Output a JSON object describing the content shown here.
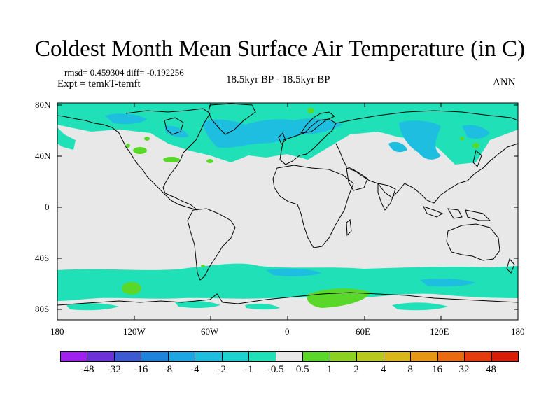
{
  "title": "Coldest Month Mean Surface Air Temperature (in C)",
  "stats": "rmsd= 0.459304 diff= -0.192256",
  "experiment": "Expt = temkT-temft",
  "period": "18.5kyr BP - 18.5kyr BP",
  "season": "ANN",
  "lat_labels": [
    "80N",
    "40N",
    "0",
    "40S",
    "80S"
  ],
  "lon_labels": [
    "180",
    "120W",
    "60W",
    "0",
    "60E",
    "120E",
    "180"
  ],
  "colorbar": {
    "labels": [
      "-48",
      "-32",
      "-16",
      "-8",
      "-4",
      "-2",
      "-1",
      "-0.5",
      "0.5",
      "1",
      "2",
      "4",
      "8",
      "16",
      "32",
      "48"
    ],
    "colors": [
      "#a020f0",
      "#6a32d8",
      "#3c5ad2",
      "#1f82dc",
      "#1ea6e4",
      "#1ebee0",
      "#1ed2d0",
      "#20e0b8",
      "#e8e8e8",
      "#5ad82a",
      "#8cd022",
      "#b8c81c",
      "#d8b818",
      "#e69614",
      "#ea6a10",
      "#e43c0c",
      "#d81e08"
    ]
  },
  "colors": {
    "background_field": "#e8e8e8",
    "cooling_light": "#20e0b8",
    "cooling_mid": "#1ebee0",
    "warming_light": "#5ad82a",
    "coastline": "#000000"
  }
}
